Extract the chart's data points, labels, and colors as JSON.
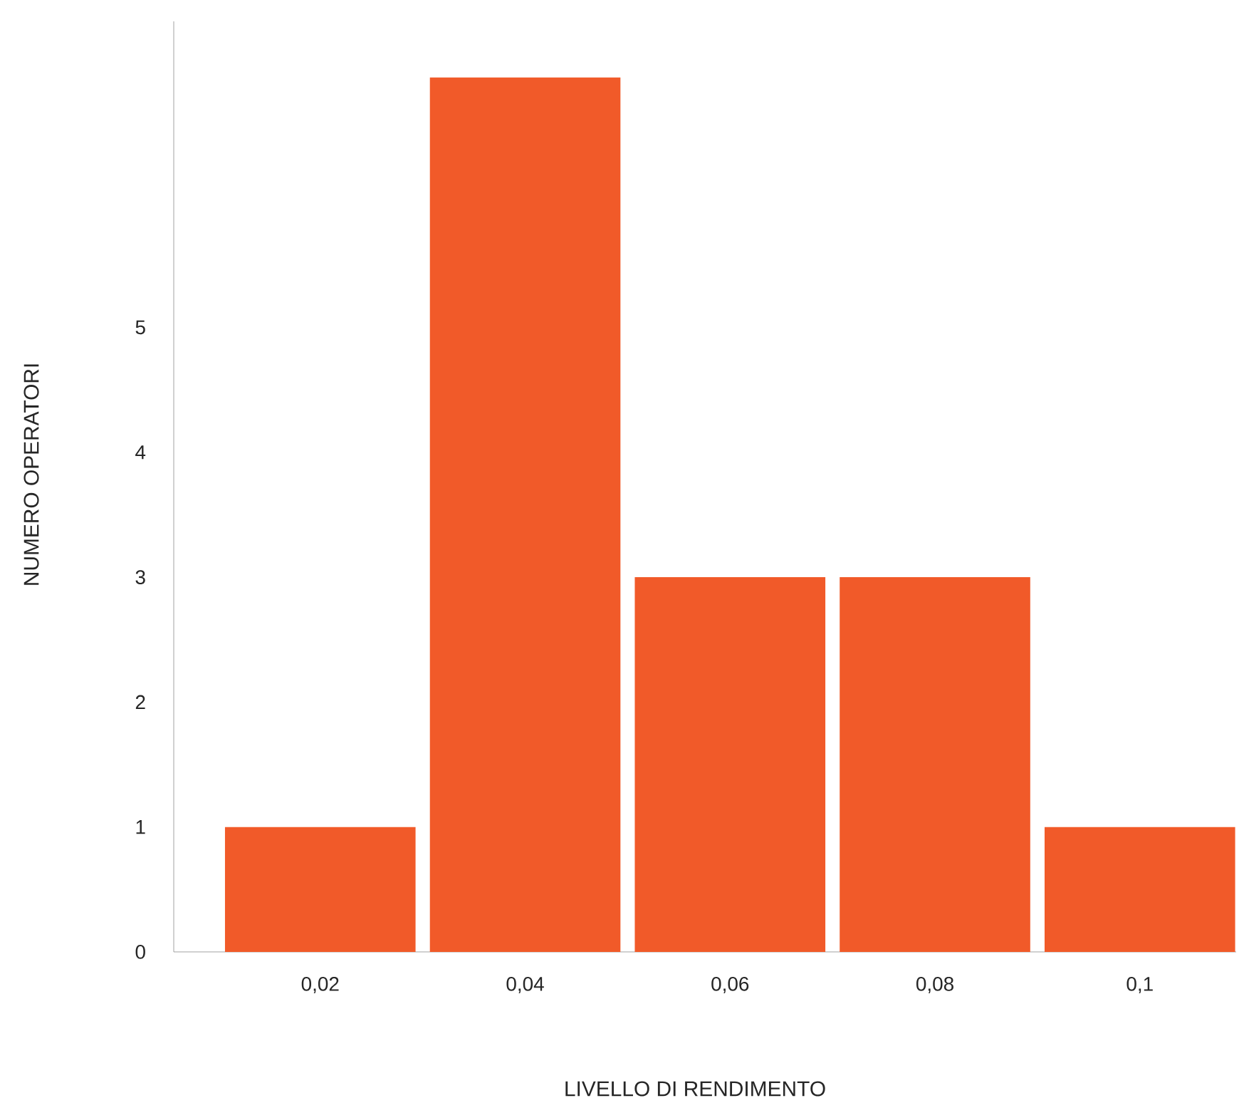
{
  "chart_data": {
    "type": "bar",
    "xlabel": "LIVELLO DI RENDIMENTO",
    "ylabel": "NUMERO OPERATORI",
    "categories": [
      "0,02",
      "0,04",
      "0,06",
      "0,08",
      "0,1"
    ],
    "values": [
      1,
      7,
      3,
      3,
      1
    ],
    "color": "#f15a29",
    "ylim": [
      0,
      7.45
    ],
    "yticks": [
      0,
      1,
      2,
      3,
      4,
      5
    ],
    "grid": false
  }
}
